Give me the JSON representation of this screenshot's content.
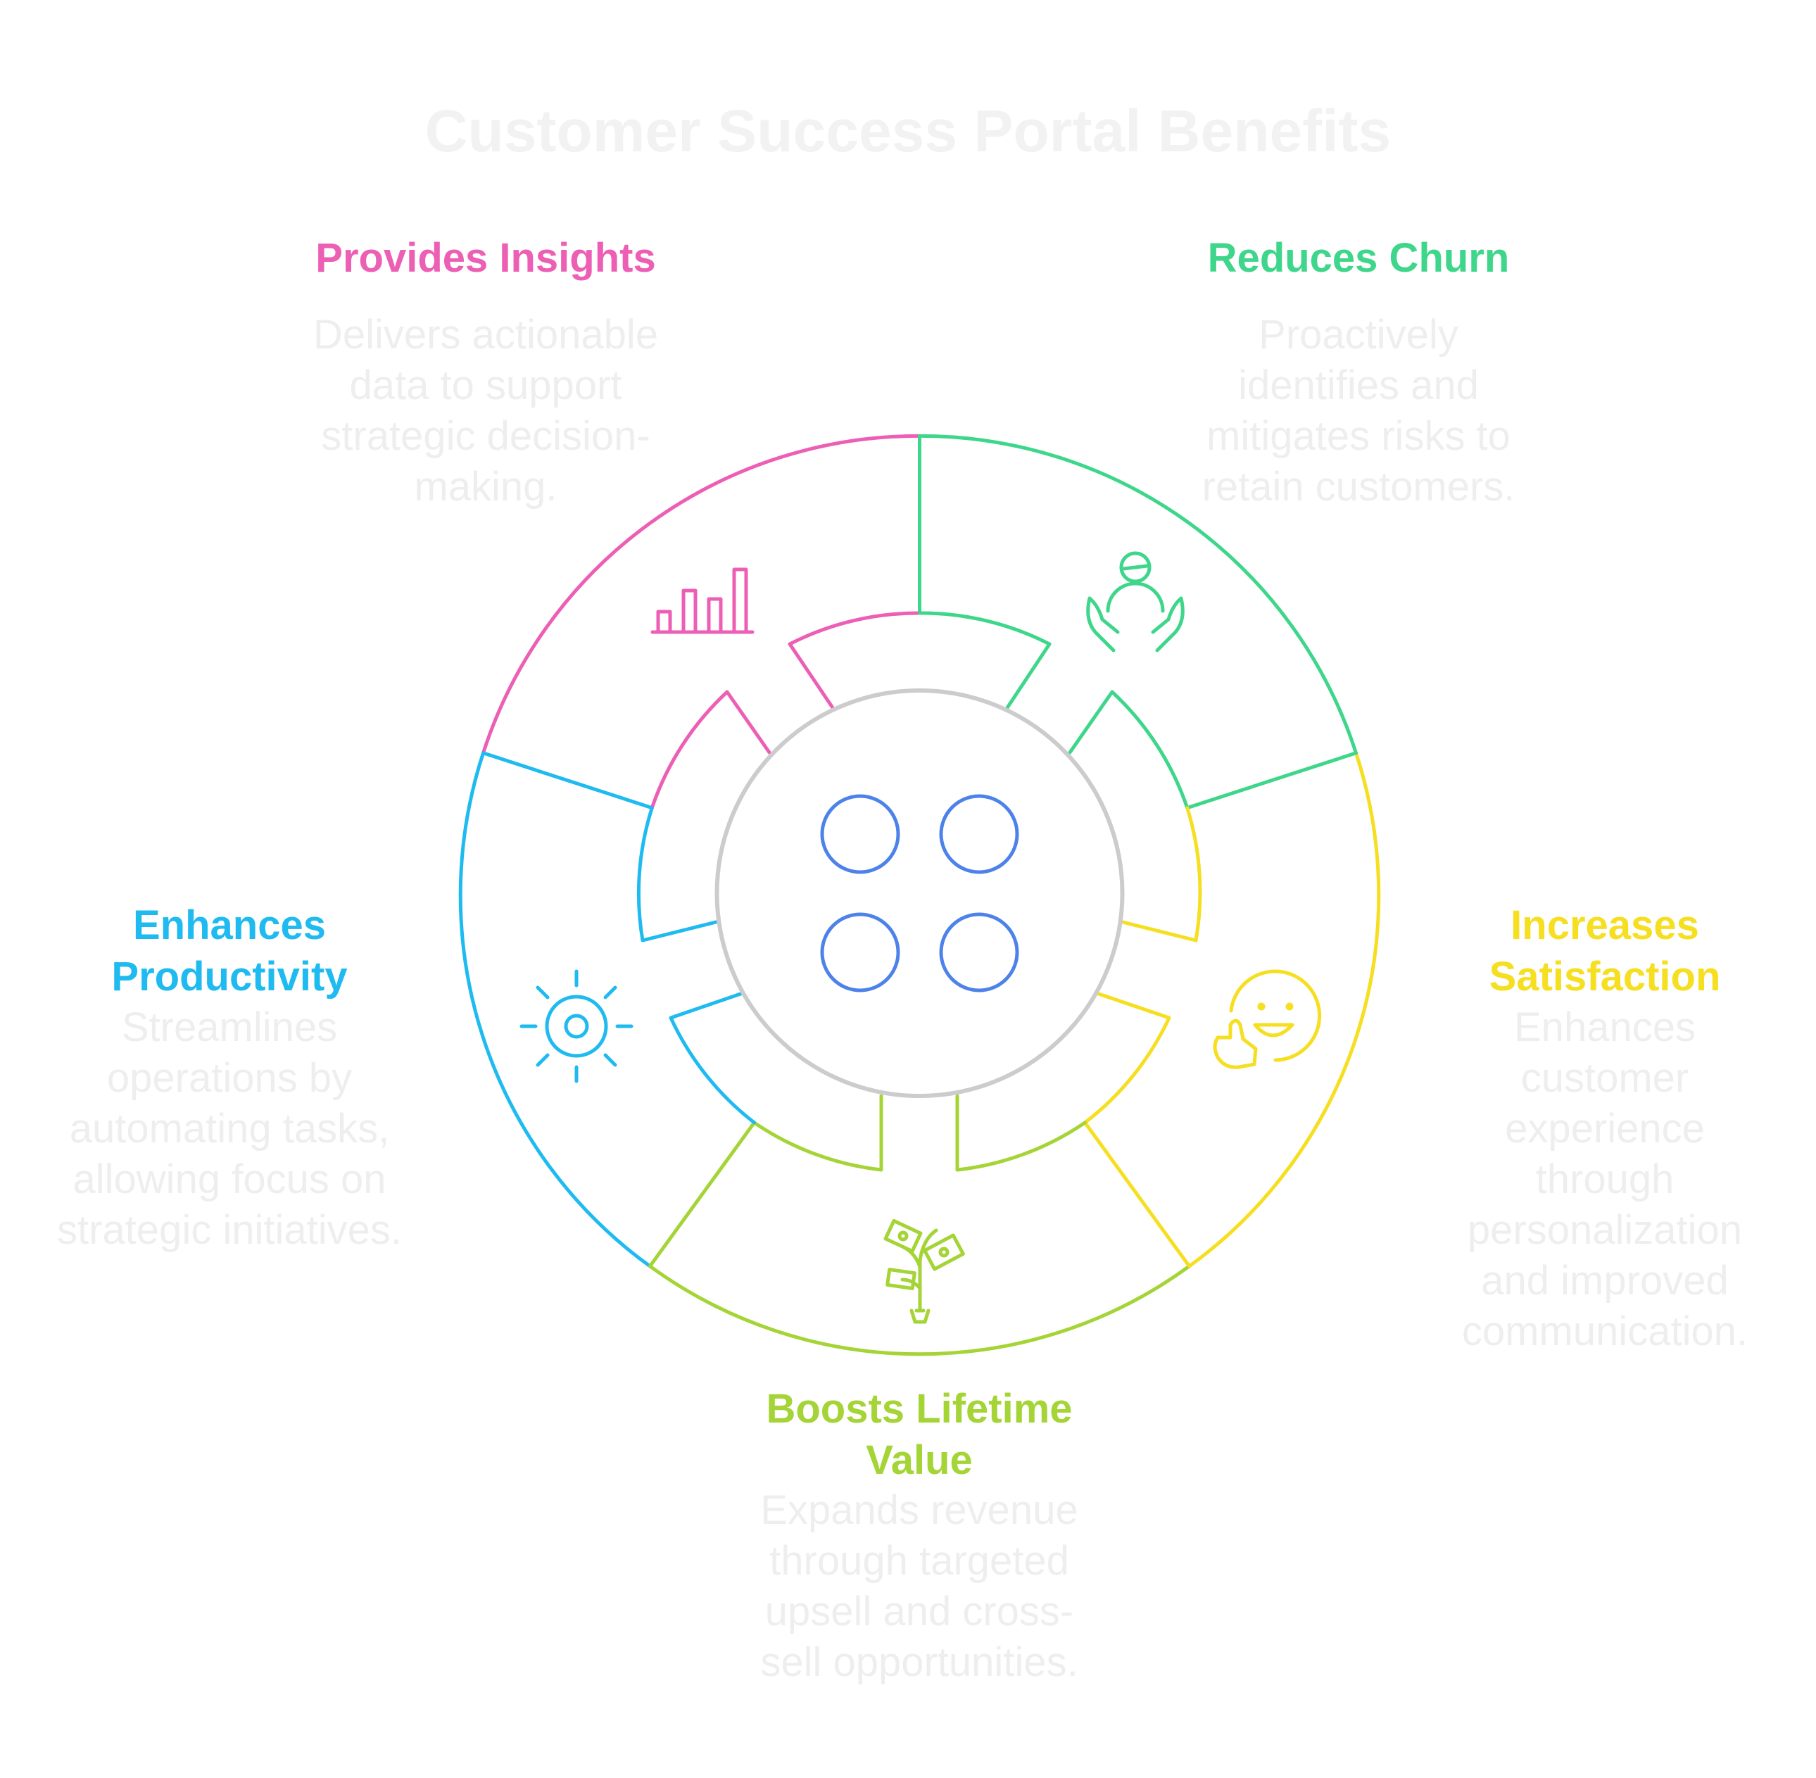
{
  "title": "Customer Success Portal Benefits",
  "colors": {
    "insights": "#ec5fb4",
    "churn": "#3ed68a",
    "satisfaction": "#f6de20",
    "lifetime": "#a4d435",
    "productivity": "#1fbbf0",
    "center": "#4c82ea",
    "hub": "#cccccc",
    "muted_text": "#eeeeee"
  },
  "segments": {
    "insights": {
      "title": "Provides Insights",
      "description": "Delivers actionable data to support strategic decision-making.",
      "icon": "bar-chart-icon"
    },
    "churn": {
      "title": "Reduces Churn",
      "description": "Proactively identifies and mitigates risks to retain customers.",
      "icon": "person-in-hands-icon"
    },
    "satisfaction": {
      "title": "Increases Satisfaction",
      "description": "Enhances customer experience through personalization and improved communication.",
      "icon": "smiley-thumbs-up-icon"
    },
    "lifetime": {
      "title": "Boosts Lifetime Value",
      "description": "Expands revenue through targeted upsell and cross-sell opportunities.",
      "icon": "money-plant-icon"
    },
    "productivity": {
      "title": "Enhances Productivity",
      "description": "Streamlines operations by automating tasks, allowing focus on strategic initiatives.",
      "icon": "gear-icon"
    }
  },
  "center_icon": "four-circles-icon"
}
